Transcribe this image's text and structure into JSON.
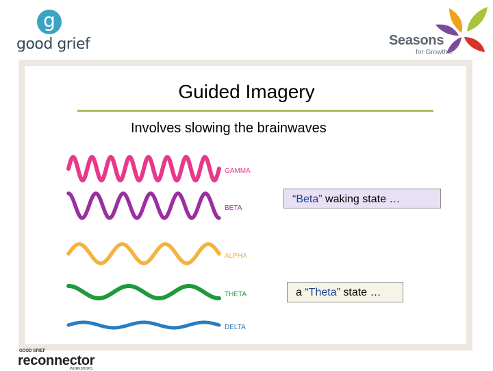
{
  "header": {
    "good_grief_logo": {
      "letter": "g",
      "text": "good grief"
    },
    "seasons_logo": {
      "title": "Seasons",
      "subtitle": "for Growth®"
    }
  },
  "slide": {
    "title": "Guided Imagery",
    "subtitle": "Involves slowing the brainwaves",
    "waves": [
      {
        "label": "GAMMA",
        "color": "#e8388a"
      },
      {
        "label": "BETA",
        "color": "#9b2ea0"
      },
      {
        "label": "ALPHA",
        "color": "#f4b33f"
      },
      {
        "label": "THETA",
        "color": "#1e9a3a"
      },
      {
        "label": "DELTA",
        "color": "#2a7cc2"
      }
    ],
    "beta_box": {
      "quote": "“Beta”",
      "rest": " waking state …"
    },
    "theta_box": {
      "prefix": "a ",
      "quote": "“Theta”",
      "rest": " state …"
    }
  },
  "footer": {
    "reconnector_logo": {
      "top": "GOOD GRIEF",
      "main": "reconnector",
      "sub": "WORKSHOPS"
    }
  }
}
